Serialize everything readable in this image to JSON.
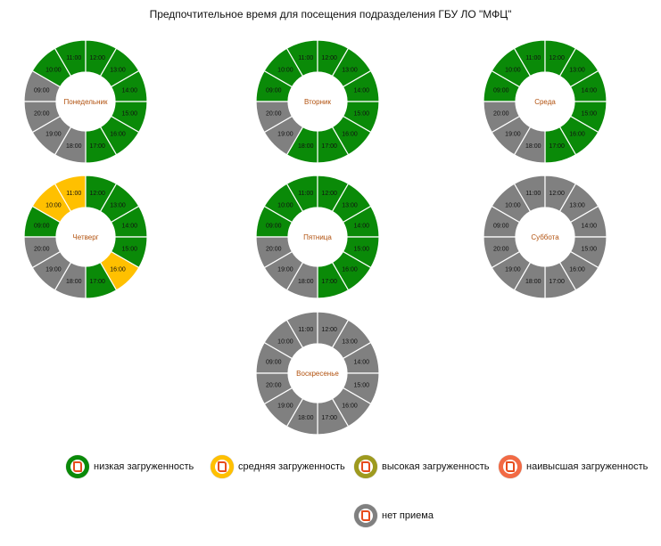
{
  "title": "Предпочтительное время для посещения подразделения ГБУ ЛО \"МФЦ\"",
  "colors": {
    "low": "#0a8a08",
    "medium": "#ffc000",
    "high": "#9e9a1e",
    "highest": "#f26a44",
    "closed": "#808080"
  },
  "chart_data": [
    {
      "type": "pie",
      "day": "Понедельник",
      "hours": [
        "09:00",
        "10:00",
        "11:00",
        "12:00",
        "13:00",
        "14:00",
        "15:00",
        "16:00",
        "17:00",
        "18:00",
        "19:00",
        "20:00"
      ],
      "status": [
        "closed",
        "low",
        "low",
        "low",
        "low",
        "low",
        "low",
        "low",
        "low",
        "closed",
        "closed",
        "closed"
      ]
    },
    {
      "type": "pie",
      "day": "Вторник",
      "hours": [
        "09:00",
        "10:00",
        "11:00",
        "12:00",
        "13:00",
        "14:00",
        "15:00",
        "16:00",
        "17:00",
        "18:00",
        "19:00",
        "20:00"
      ],
      "status": [
        "low",
        "low",
        "low",
        "low",
        "low",
        "low",
        "low",
        "low",
        "low",
        "low",
        "closed",
        "closed"
      ]
    },
    {
      "type": "pie",
      "day": "Среда",
      "hours": [
        "09:00",
        "10:00",
        "11:00",
        "12:00",
        "13:00",
        "14:00",
        "15:00",
        "16:00",
        "17:00",
        "18:00",
        "19:00",
        "20:00"
      ],
      "status": [
        "low",
        "low",
        "low",
        "low",
        "low",
        "low",
        "low",
        "low",
        "low",
        "closed",
        "closed",
        "closed"
      ]
    },
    {
      "type": "pie",
      "day": "Четверг",
      "hours": [
        "09:00",
        "10:00",
        "11:00",
        "12:00",
        "13:00",
        "14:00",
        "15:00",
        "16:00",
        "17:00",
        "18:00",
        "19:00",
        "20:00"
      ],
      "status": [
        "low",
        "medium",
        "medium",
        "low",
        "low",
        "low",
        "low",
        "medium",
        "low",
        "closed",
        "closed",
        "closed"
      ]
    },
    {
      "type": "pie",
      "day": "Пятница",
      "hours": [
        "09:00",
        "10:00",
        "11:00",
        "12:00",
        "13:00",
        "14:00",
        "15:00",
        "16:00",
        "17:00",
        "18:00",
        "19:00",
        "20:00"
      ],
      "status": [
        "low",
        "low",
        "low",
        "low",
        "low",
        "low",
        "low",
        "low",
        "low",
        "closed",
        "closed",
        "closed"
      ]
    },
    {
      "type": "pie",
      "day": "Суббота",
      "hours": [
        "09:00",
        "10:00",
        "11:00",
        "12:00",
        "13:00",
        "14:00",
        "15:00",
        "16:00",
        "17:00",
        "18:00",
        "19:00",
        "20:00"
      ],
      "status": [
        "closed",
        "closed",
        "closed",
        "closed",
        "closed",
        "closed",
        "closed",
        "closed",
        "closed",
        "closed",
        "closed",
        "closed"
      ]
    },
    {
      "type": "pie",
      "day": "Воскресенье",
      "hours": [
        "09:00",
        "10:00",
        "11:00",
        "12:00",
        "13:00",
        "14:00",
        "15:00",
        "16:00",
        "17:00",
        "18:00",
        "19:00",
        "20:00"
      ],
      "status": [
        "closed",
        "closed",
        "closed",
        "closed",
        "closed",
        "closed",
        "closed",
        "closed",
        "closed",
        "closed",
        "closed",
        "closed"
      ]
    }
  ],
  "legend": [
    {
      "key": "low",
      "label": "низкая загруженность"
    },
    {
      "key": "medium",
      "label": "средняя загруженность"
    },
    {
      "key": "high",
      "label": "высокая загруженность"
    },
    {
      "key": "highest",
      "label": "наивысшая загруженность"
    },
    {
      "key": "closed",
      "label": "нет приема"
    }
  ]
}
